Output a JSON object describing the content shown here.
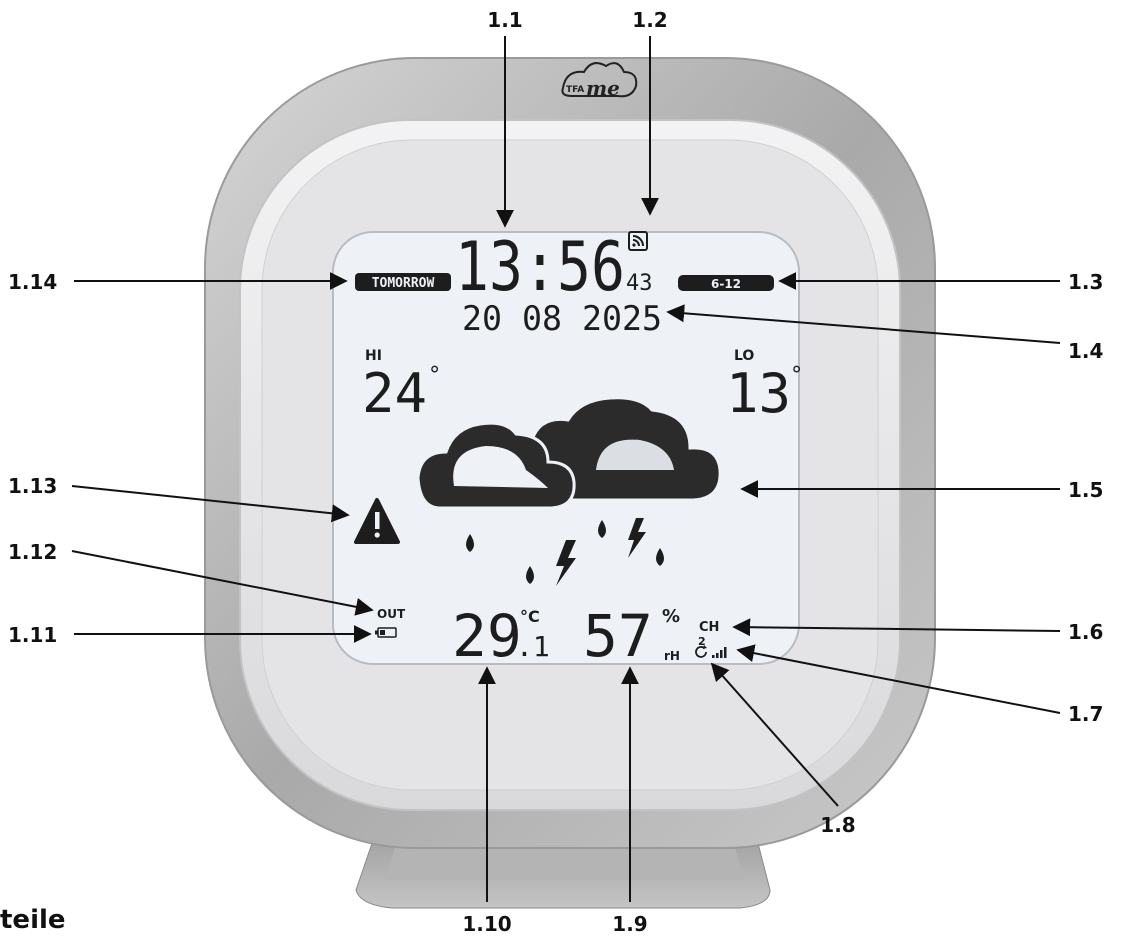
{
  "brand": "TFA me",
  "display": {
    "time": "13:56",
    "seconds": "43",
    "tomorrow_badge": "TOMORROW",
    "period_badge": "6-12",
    "date": "20 08 2025",
    "hi_label": "HI",
    "hi_value": "24",
    "lo_label": "LO",
    "lo_value": "13",
    "degree": "°",
    "out_label": "OUT",
    "temp_value": "29",
    "temp_decimal": ".1",
    "temp_unit": "°C",
    "humidity_value": "57",
    "humidity_unit": "%",
    "humidity_sub": "rH",
    "channel_label": "CH",
    "channel_number": "2"
  },
  "callouts": {
    "c1_1": "1.1",
    "c1_2": "1.2",
    "c1_3": "1.3",
    "c1_4": "1.4",
    "c1_5": "1.5",
    "c1_6": "1.6",
    "c1_7": "1.7",
    "c1_8": "1.8",
    "c1_9": "1.9",
    "c1_10": "1.10",
    "c1_11": "1.11",
    "c1_12": "1.12",
    "c1_13": "1.13",
    "c1_14": "1.14"
  },
  "caption": "teile",
  "colors": {
    "frame": "#b9b9b9",
    "bezel": "#e6e6e8",
    "screen": "#eef2f6",
    "ink": "#1d1d1d"
  }
}
